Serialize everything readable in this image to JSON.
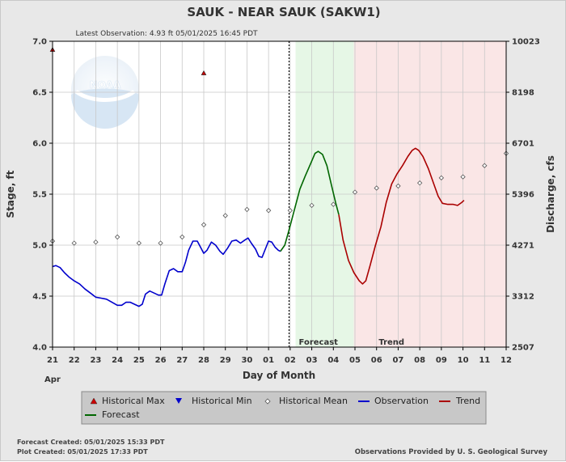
{
  "chart_data": {
    "type": "line",
    "title": "SAUK - NEAR SAUK  (SAKW1)",
    "subtitle": "Latest Observation: 4.93 ft 05/01/2025 16:45 PDT",
    "xlabel": "Day of Month",
    "xlabel_month": "Apr",
    "ylabel": "Stage, ft",
    "ylabel_right": "Discharge, cfs",
    "x_ticks": [
      "21",
      "22",
      "23",
      "24",
      "25",
      "26",
      "27",
      "28",
      "29",
      "30",
      "01",
      "02",
      "03",
      "04",
      "05",
      "06",
      "07",
      "08",
      "09",
      "10",
      "11",
      "12"
    ],
    "xlim": [
      0,
      21
    ],
    "ylim": [
      4.0,
      7.0
    ],
    "y_ticks": [
      4.0,
      4.5,
      5.0,
      5.5,
      6.0,
      6.5,
      7.0
    ],
    "y_tick_labels": [
      "4.0",
      "4.5",
      "5.0",
      "5.5",
      "6.0",
      "6.5",
      "7.0"
    ],
    "right_ticks": [
      {
        "stage": 4.0,
        "label": "2507"
      },
      {
        "stage": 4.5,
        "label": "3312"
      },
      {
        "stage": 5.0,
        "label": "4271"
      },
      {
        "stage": 5.5,
        "label": "5396"
      },
      {
        "stage": 6.0,
        "label": "6701"
      },
      {
        "stage": 6.5,
        "label": "8198"
      },
      {
        "stage": 7.0,
        "label": "10023"
      }
    ],
    "grid": true,
    "regions": [
      {
        "name": "Forecast",
        "x0": 11.25,
        "x1": 13.95,
        "color": "#e6f7e6"
      },
      {
        "name": "Trend",
        "x0": 13.95,
        "x1": 21,
        "color": "#fae6e6"
      }
    ],
    "current_time_x": 10.95,
    "series": [
      {
        "name": "Observation",
        "color": "#0000cc",
        "points": [
          [
            0.0,
            4.79
          ],
          [
            0.15,
            4.8
          ],
          [
            0.35,
            4.78
          ],
          [
            0.55,
            4.73
          ],
          [
            0.75,
            4.69
          ],
          [
            1.0,
            4.65
          ],
          [
            1.25,
            4.62
          ],
          [
            1.5,
            4.57
          ],
          [
            1.75,
            4.53
          ],
          [
            2.0,
            4.49
          ],
          [
            2.25,
            4.48
          ],
          [
            2.5,
            4.47
          ],
          [
            2.75,
            4.44
          ],
          [
            3.0,
            4.41
          ],
          [
            3.2,
            4.41
          ],
          [
            3.4,
            4.44
          ],
          [
            3.6,
            4.44
          ],
          [
            3.8,
            4.42
          ],
          [
            4.0,
            4.4
          ],
          [
            4.15,
            4.42
          ],
          [
            4.3,
            4.52
          ],
          [
            4.5,
            4.55
          ],
          [
            4.7,
            4.53
          ],
          [
            4.9,
            4.51
          ],
          [
            5.05,
            4.51
          ],
          [
            5.2,
            4.62
          ],
          [
            5.4,
            4.75
          ],
          [
            5.6,
            4.77
          ],
          [
            5.8,
            4.74
          ],
          [
            6.0,
            4.74
          ],
          [
            6.15,
            4.83
          ],
          [
            6.3,
            4.95
          ],
          [
            6.5,
            5.04
          ],
          [
            6.7,
            5.04
          ],
          [
            6.85,
            4.98
          ],
          [
            7.0,
            4.92
          ],
          [
            7.15,
            4.95
          ],
          [
            7.35,
            5.03
          ],
          [
            7.55,
            5.0
          ],
          [
            7.75,
            4.94
          ],
          [
            7.9,
            4.91
          ],
          [
            8.1,
            4.97
          ],
          [
            8.3,
            5.04
          ],
          [
            8.5,
            5.05
          ],
          [
            8.7,
            5.02
          ],
          [
            8.9,
            5.05
          ],
          [
            9.05,
            5.07
          ],
          [
            9.2,
            5.02
          ],
          [
            9.4,
            4.96
          ],
          [
            9.55,
            4.89
          ],
          [
            9.7,
            4.88
          ],
          [
            9.85,
            4.96
          ],
          [
            10.0,
            5.04
          ],
          [
            10.15,
            5.03
          ],
          [
            10.3,
            4.98
          ],
          [
            10.45,
            4.95
          ],
          [
            10.55,
            4.94
          ]
        ]
      },
      {
        "name": "Forecast",
        "color": "#006600",
        "points": [
          [
            10.55,
            4.94
          ],
          [
            10.75,
            5.0
          ],
          [
            10.95,
            5.15
          ],
          [
            11.2,
            5.35
          ],
          [
            11.45,
            5.55
          ],
          [
            11.7,
            5.68
          ],
          [
            11.95,
            5.8
          ],
          [
            12.15,
            5.9
          ],
          [
            12.3,
            5.92
          ],
          [
            12.5,
            5.89
          ],
          [
            12.7,
            5.78
          ],
          [
            12.9,
            5.6
          ],
          [
            13.1,
            5.42
          ],
          [
            13.25,
            5.3
          ]
        ]
      },
      {
        "name": "Trend",
        "color": "#aa0000",
        "points": [
          [
            13.25,
            5.3
          ],
          [
            13.45,
            5.05
          ],
          [
            13.7,
            4.85
          ],
          [
            13.95,
            4.73
          ],
          [
            14.2,
            4.65
          ],
          [
            14.35,
            4.62
          ],
          [
            14.5,
            4.65
          ],
          [
            14.7,
            4.8
          ],
          [
            14.95,
            5.0
          ],
          [
            15.2,
            5.18
          ],
          [
            15.45,
            5.42
          ],
          [
            15.7,
            5.6
          ],
          [
            15.95,
            5.7
          ],
          [
            16.2,
            5.78
          ],
          [
            16.45,
            5.87
          ],
          [
            16.65,
            5.93
          ],
          [
            16.8,
            5.95
          ],
          [
            16.95,
            5.93
          ],
          [
            17.15,
            5.87
          ],
          [
            17.4,
            5.75
          ],
          [
            17.65,
            5.6
          ],
          [
            17.85,
            5.48
          ],
          [
            18.05,
            5.41
          ],
          [
            18.3,
            5.4
          ],
          [
            18.55,
            5.4
          ],
          [
            18.75,
            5.39
          ],
          [
            18.95,
            5.42
          ],
          [
            19.05,
            5.44
          ]
        ]
      }
    ],
    "historical_mean": {
      "name": "Historical Mean",
      "points": [
        [
          0,
          5.04
        ],
        [
          1,
          5.02
        ],
        [
          2,
          5.03
        ],
        [
          3,
          5.08
        ],
        [
          4,
          5.02
        ],
        [
          5,
          5.02
        ],
        [
          6,
          5.08
        ],
        [
          7,
          5.2
        ],
        [
          8,
          5.29
        ],
        [
          9,
          5.35
        ],
        [
          10,
          5.34
        ],
        [
          11,
          5.34
        ],
        [
          12,
          5.39
        ],
        [
          13,
          5.4
        ],
        [
          14,
          5.52
        ],
        [
          15,
          5.56
        ],
        [
          16,
          5.58
        ],
        [
          17,
          5.61
        ],
        [
          18,
          5.66
        ],
        [
          19,
          5.67
        ],
        [
          20,
          5.78
        ],
        [
          21,
          5.9
        ]
      ]
    },
    "historical_max": {
      "name": "Historical Max",
      "points": [
        [
          0,
          6.92
        ],
        [
          7,
          6.69
        ]
      ]
    },
    "legend": {
      "placement": "bottom",
      "items": [
        {
          "label": "Historical Max",
          "marker": "triangle-up",
          "color": "#cc0000"
        },
        {
          "label": "Historical Min",
          "marker": "triangle-down",
          "color": "#0000cc"
        },
        {
          "label": "Historical Mean",
          "marker": "diamond",
          "color": "#555555"
        },
        {
          "label": "Observation",
          "marker": "line",
          "color": "#0000cc"
        },
        {
          "label": "Trend",
          "marker": "line",
          "color": "#aa0000"
        },
        {
          "label": "Forecast",
          "marker": "line",
          "color": "#006600"
        }
      ]
    },
    "region_labels": [
      "Forecast",
      "Trend"
    ],
    "logo": "NOAA"
  },
  "footer": {
    "forecast_created": "Forecast Created: 05/01/2025 15:33 PDT",
    "plot_created": "Plot Created: 05/01/2025 17:33 PDT",
    "credit": "Observations Provided by U. S. Geological Survey"
  }
}
